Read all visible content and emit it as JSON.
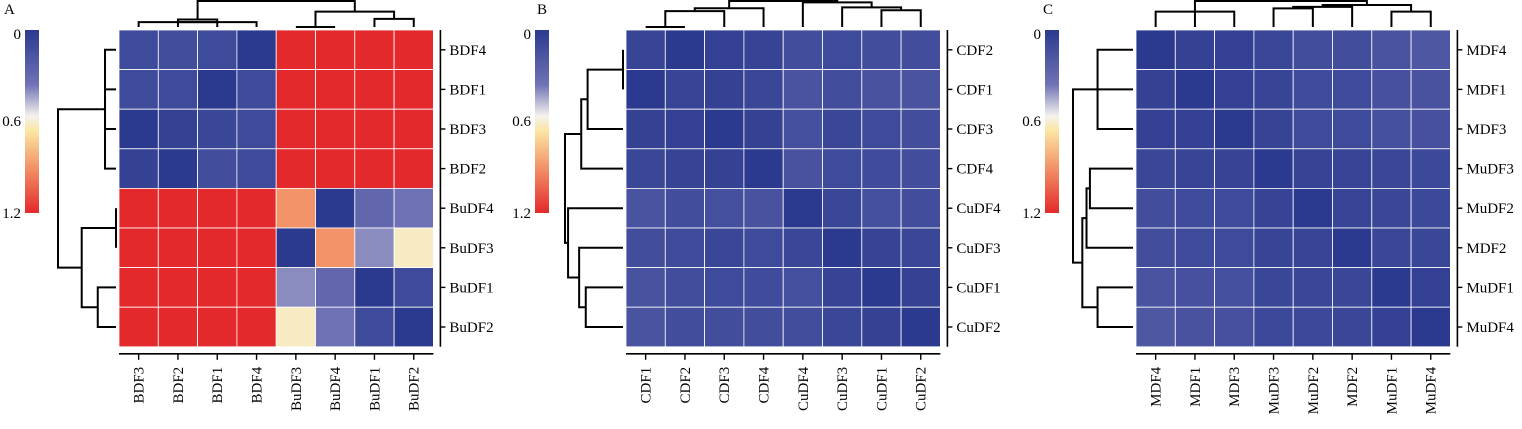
{
  "chart_data": [
    {
      "type": "heatmap",
      "panel_label": "A",
      "colorbar": {
        "min": 0,
        "max": 1.2,
        "ticks": [
          "0",
          "0.6",
          "1.2"
        ]
      },
      "columns": [
        "BDF3",
        "BDF2",
        "BDF1",
        "BDF4",
        "BuDF3",
        "BuDF4",
        "BuDF1",
        "BuDF2"
      ],
      "rows": [
        "BDF4",
        "BDF1",
        "BDF3",
        "BDF2",
        "BuDF4",
        "BuDF3",
        "BuDF1",
        "BuDF2"
      ],
      "values": [
        [
          0.1,
          0.12,
          0.1,
          0.0,
          1.2,
          1.2,
          1.2,
          1.2
        ],
        [
          0.1,
          0.1,
          0.0,
          0.1,
          1.2,
          1.2,
          1.2,
          1.2
        ],
        [
          0.0,
          0.05,
          0.08,
          0.1,
          1.2,
          1.2,
          1.2,
          1.2
        ],
        [
          0.05,
          0.0,
          0.12,
          0.1,
          1.2,
          1.2,
          1.2,
          1.2
        ],
        [
          1.2,
          1.2,
          1.2,
          1.2,
          0.9,
          0.0,
          0.28,
          0.35
        ],
        [
          1.2,
          1.2,
          1.2,
          1.2,
          0.0,
          0.9,
          0.4,
          0.62
        ],
        [
          1.2,
          1.2,
          1.2,
          1.2,
          0.4,
          0.28,
          0.0,
          0.1
        ],
        [
          1.2,
          1.2,
          1.2,
          1.2,
          0.62,
          0.35,
          0.1,
          0.0
        ]
      ]
    },
    {
      "type": "heatmap",
      "panel_label": "B",
      "colorbar": {
        "min": 0,
        "max": 1.2,
        "ticks": [
          "0",
          "0.6",
          "1.2"
        ]
      },
      "columns": [
        "CDF1",
        "CDF2",
        "CDF3",
        "CDF4",
        "CuDF4",
        "CuDF3",
        "CuDF1",
        "CuDF2"
      ],
      "rows": [
        "CDF2",
        "CDF1",
        "CDF3",
        "CDF4",
        "CuDF4",
        "CuDF3",
        "CuDF1",
        "CuDF2"
      ],
      "values": [
        [
          0.07,
          0.0,
          0.04,
          0.06,
          0.12,
          0.1,
          0.12,
          0.12
        ],
        [
          0.0,
          0.07,
          0.05,
          0.08,
          0.16,
          0.12,
          0.15,
          0.16
        ],
        [
          0.05,
          0.04,
          0.0,
          0.05,
          0.13,
          0.08,
          0.1,
          0.12
        ],
        [
          0.08,
          0.06,
          0.05,
          0.0,
          0.15,
          0.1,
          0.11,
          0.12
        ],
        [
          0.16,
          0.12,
          0.13,
          0.15,
          0.0,
          0.08,
          0.13,
          0.12
        ],
        [
          0.12,
          0.1,
          0.08,
          0.1,
          0.08,
          0.0,
          0.06,
          0.08
        ],
        [
          0.15,
          0.12,
          0.1,
          0.11,
          0.13,
          0.06,
          0.0,
          0.05
        ],
        [
          0.16,
          0.12,
          0.12,
          0.12,
          0.12,
          0.08,
          0.05,
          0.0
        ]
      ]
    },
    {
      "type": "heatmap",
      "panel_label": "C",
      "colorbar": {
        "min": 0,
        "max": 1.2,
        "ticks": [
          "0",
          "0.6",
          "1.2"
        ]
      },
      "columns": [
        "MDF4",
        "MDF1",
        "MDF3",
        "MuDF3",
        "MuDF2",
        "MDF2",
        "MuDF1",
        "MuDF4"
      ],
      "rows": [
        "MDF4",
        "MDF1",
        "MDF3",
        "MuDF3",
        "MuDF2",
        "MDF2",
        "MuDF1",
        "MuDF4"
      ],
      "values": [
        [
          0.0,
          0.05,
          0.04,
          0.08,
          0.12,
          0.12,
          0.16,
          0.18
        ],
        [
          0.05,
          0.0,
          0.04,
          0.07,
          0.1,
          0.1,
          0.14,
          0.15
        ],
        [
          0.04,
          0.04,
          0.0,
          0.06,
          0.1,
          0.1,
          0.13,
          0.14
        ],
        [
          0.08,
          0.07,
          0.06,
          0.0,
          0.06,
          0.07,
          0.08,
          0.09
        ],
        [
          0.12,
          0.1,
          0.1,
          0.06,
          0.0,
          0.07,
          0.08,
          0.09
        ],
        [
          0.12,
          0.1,
          0.1,
          0.07,
          0.07,
          0.0,
          0.08,
          0.08
        ],
        [
          0.16,
          0.14,
          0.13,
          0.08,
          0.08,
          0.08,
          0.0,
          0.04
        ],
        [
          0.18,
          0.15,
          0.14,
          0.09,
          0.09,
          0.08,
          0.04,
          0.0
        ]
      ]
    }
  ]
}
